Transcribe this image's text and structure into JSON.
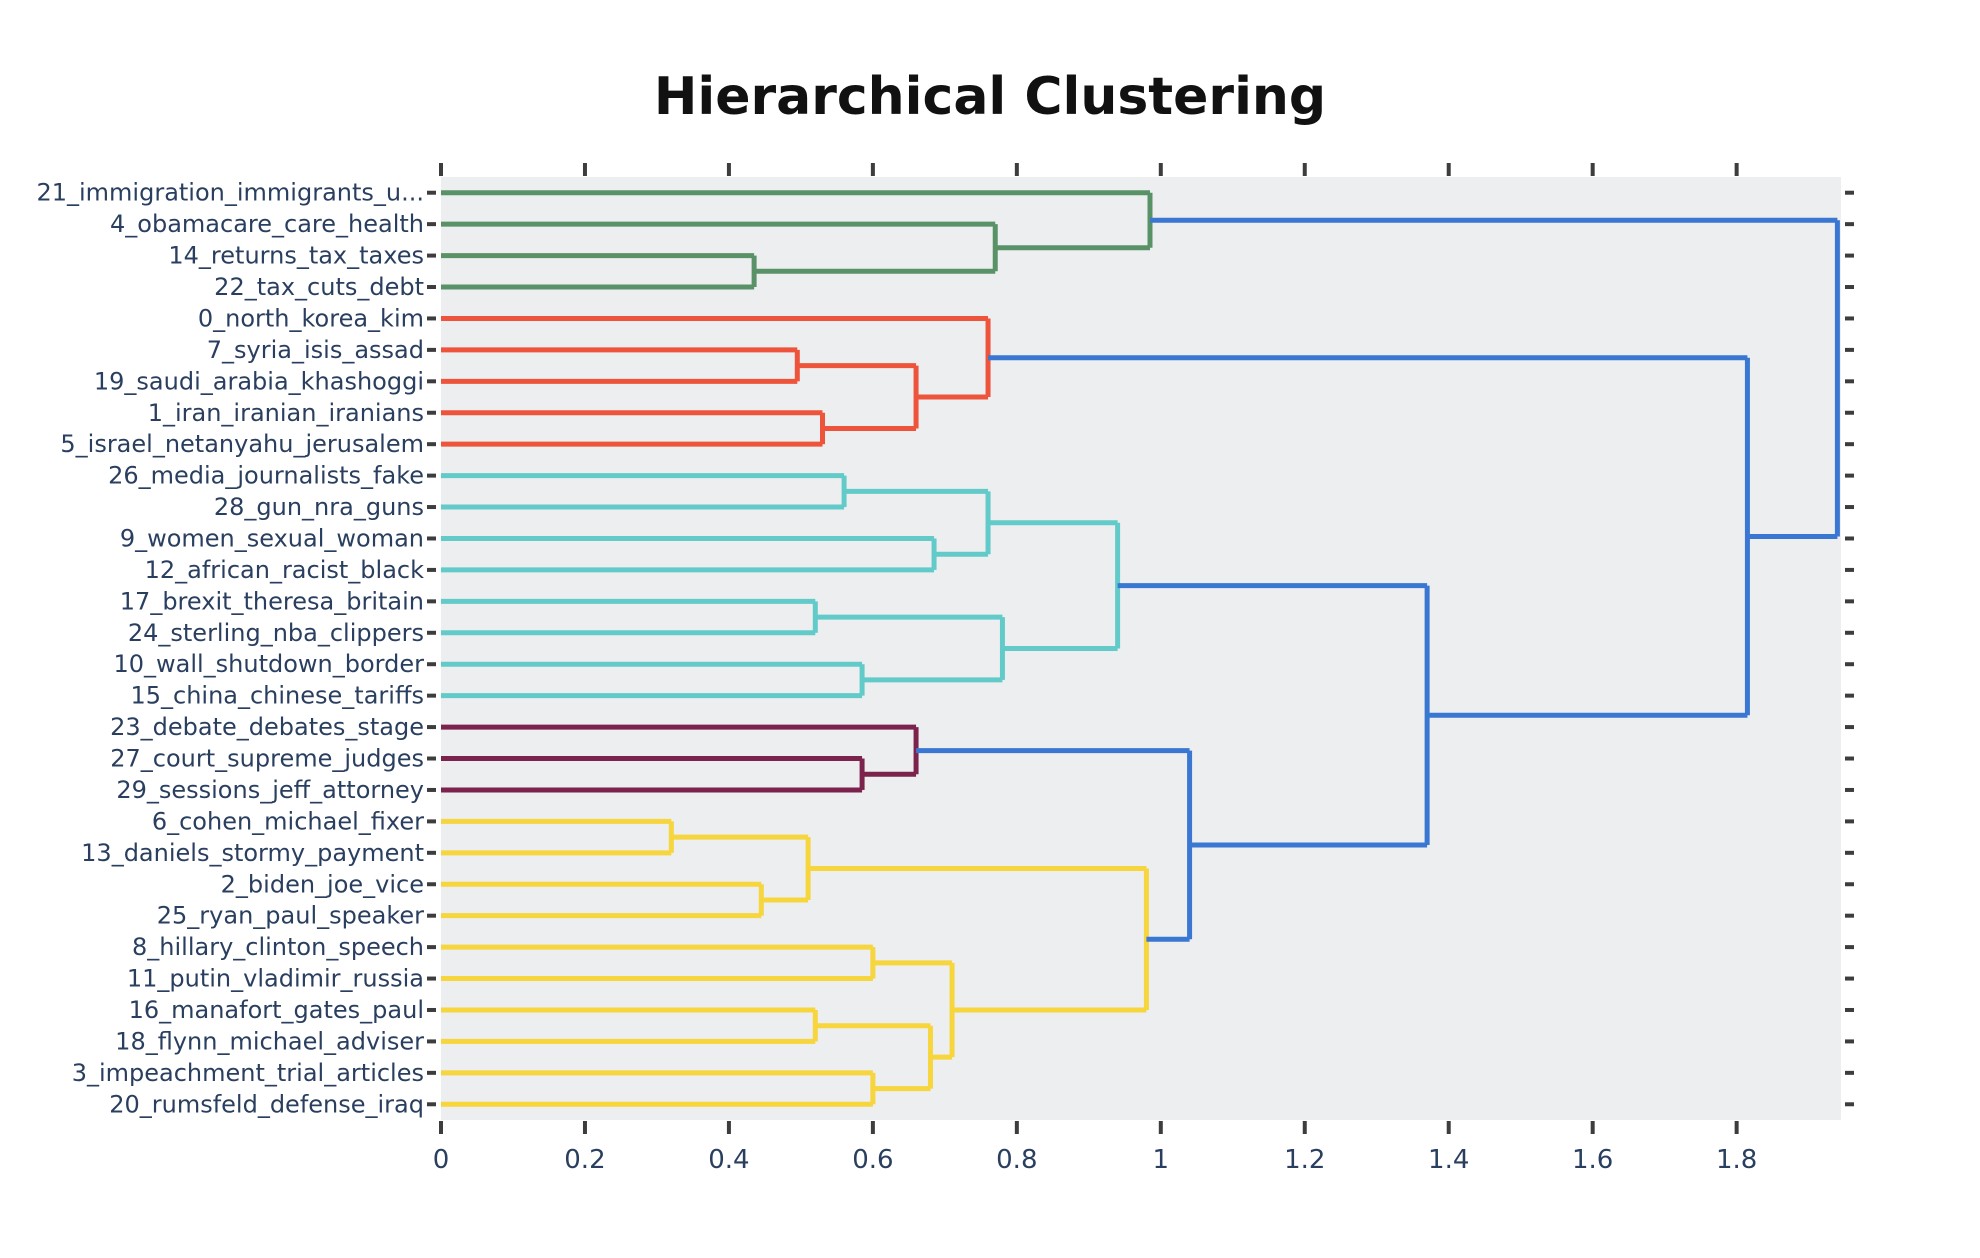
{
  "title": "Hierarchical Clustering",
  "chart_data": {
    "type": "dendrogram",
    "title": "Hierarchical Clustering",
    "orientation": "horizontal-left-leaves",
    "xlabel": "",
    "ylabel": "",
    "grid": false,
    "legend": "none",
    "x_axis": {
      "min": 0,
      "max": 1.945,
      "tick_values": [
        0,
        0.2,
        0.4,
        0.6,
        0.8,
        1,
        1.2,
        1.4,
        1.6,
        1.8
      ],
      "tick_labels": [
        "0",
        "0.2",
        "0.4",
        "0.6",
        "0.8",
        "1",
        "1.2",
        "1.4",
        "1.6",
        "1.8"
      ]
    },
    "leaves": [
      "21_immigration_immigrants_u...",
      "4_obamacare_care_health",
      "14_returns_tax_taxes",
      "22_tax_cuts_debt",
      "0_north_korea_kim",
      "7_syria_isis_assad",
      "19_saudi_arabia_khashoggi",
      "1_iran_iranian_iranians",
      "5_israel_netanyahu_jerusalem",
      "26_media_journalists_fake",
      "28_gun_nra_guns",
      "9_women_sexual_woman",
      "12_african_racist_black",
      "17_brexit_theresa_britain",
      "24_sterling_nba_clippers",
      "10_wall_shutdown_border",
      "15_china_chinese_tariffs",
      "23_debate_debates_stage",
      "27_court_supreme_judges",
      "29_sessions_jeff_attorney",
      "6_cohen_michael_fixer",
      "13_daniels_stormy_payment",
      "2_biden_joe_vice",
      "25_ryan_paul_speaker",
      "8_hillary_clinton_speech",
      "11_putin_vladimir_russia",
      "16_manafort_gates_paul",
      "18_flynn_michael_adviser",
      "3_impeachment_trial_articles",
      "20_rumsfeld_defense_iraq"
    ],
    "merges": [
      {
        "id": "M0",
        "a": "L2",
        "b": "L3",
        "h": 0.435,
        "color": "green"
      },
      {
        "id": "M1",
        "a": "L1",
        "b": "M0",
        "h": 0.77,
        "color": "green"
      },
      {
        "id": "M2",
        "a": "L0",
        "b": "M1",
        "h": 0.985,
        "color": "green"
      },
      {
        "id": "M3",
        "a": "L5",
        "b": "L6",
        "h": 0.495,
        "color": "red"
      },
      {
        "id": "M4",
        "a": "L7",
        "b": "L8",
        "h": 0.53,
        "color": "red"
      },
      {
        "id": "M5",
        "a": "M3",
        "b": "M4",
        "h": 0.66,
        "color": "red"
      },
      {
        "id": "M6",
        "a": "L4",
        "b": "M5",
        "h": 0.76,
        "color": "red"
      },
      {
        "id": "M7",
        "a": "L9",
        "b": "L10",
        "h": 0.56,
        "color": "teal"
      },
      {
        "id": "M8",
        "a": "L11",
        "b": "L12",
        "h": 0.685,
        "color": "teal"
      },
      {
        "id": "M9",
        "a": "M7",
        "b": "M8",
        "h": 0.76,
        "color": "teal"
      },
      {
        "id": "M10",
        "a": "L13",
        "b": "L14",
        "h": 0.52,
        "color": "teal"
      },
      {
        "id": "M11",
        "a": "L15",
        "b": "L16",
        "h": 0.585,
        "color": "teal"
      },
      {
        "id": "M12",
        "a": "M10",
        "b": "M11",
        "h": 0.78,
        "color": "teal"
      },
      {
        "id": "M13",
        "a": "M9",
        "b": "M12",
        "h": 0.94,
        "color": "teal"
      },
      {
        "id": "M14",
        "a": "L18",
        "b": "L19",
        "h": 0.585,
        "color": "purple"
      },
      {
        "id": "M15",
        "a": "L17",
        "b": "M14",
        "h": 0.66,
        "color": "purple"
      },
      {
        "id": "M16",
        "a": "L20",
        "b": "L21",
        "h": 0.32,
        "color": "yellow"
      },
      {
        "id": "M17",
        "a": "L22",
        "b": "L23",
        "h": 0.445,
        "color": "yellow"
      },
      {
        "id": "M18",
        "a": "M16",
        "b": "M17",
        "h": 0.51,
        "color": "yellow"
      },
      {
        "id": "M19",
        "a": "L24",
        "b": "L25",
        "h": 0.6,
        "color": "yellow"
      },
      {
        "id": "M20",
        "a": "L26",
        "b": "L27",
        "h": 0.52,
        "color": "yellow"
      },
      {
        "id": "M21",
        "a": "L28",
        "b": "L29",
        "h": 0.6,
        "color": "yellow"
      },
      {
        "id": "M22",
        "a": "M20",
        "b": "M21",
        "h": 0.68,
        "color": "yellow"
      },
      {
        "id": "M23",
        "a": "M19",
        "b": "M22",
        "h": 0.71,
        "color": "yellow"
      },
      {
        "id": "M24",
        "a": "M18",
        "b": "M23",
        "h": 0.98,
        "color": "yellow"
      },
      {
        "id": "M25",
        "a": "M15",
        "b": "M24",
        "h": 1.04,
        "color": "blue"
      },
      {
        "id": "M26",
        "a": "M13",
        "b": "M25",
        "h": 1.37,
        "color": "blue"
      },
      {
        "id": "M27",
        "a": "M6",
        "b": "M26",
        "h": 1.815,
        "color": "blue"
      },
      {
        "id": "M28",
        "a": "M2",
        "b": "M27",
        "h": 1.94,
        "color": "blue"
      }
    ],
    "cluster_colors": {
      "green": "#5a9268",
      "red": "#ee543b",
      "teal": "#62cbc9",
      "purple": "#7c234d",
      "yellow": "#f6d53d",
      "blue": "#3a77d3"
    },
    "styles": {
      "plot_bg": "#eceef0",
      "page_bg": "#ffffff",
      "label_color": "#2a3f5f",
      "tick_color": "#3d3d3d",
      "title_color": "#111111",
      "line_width": 5
    }
  }
}
